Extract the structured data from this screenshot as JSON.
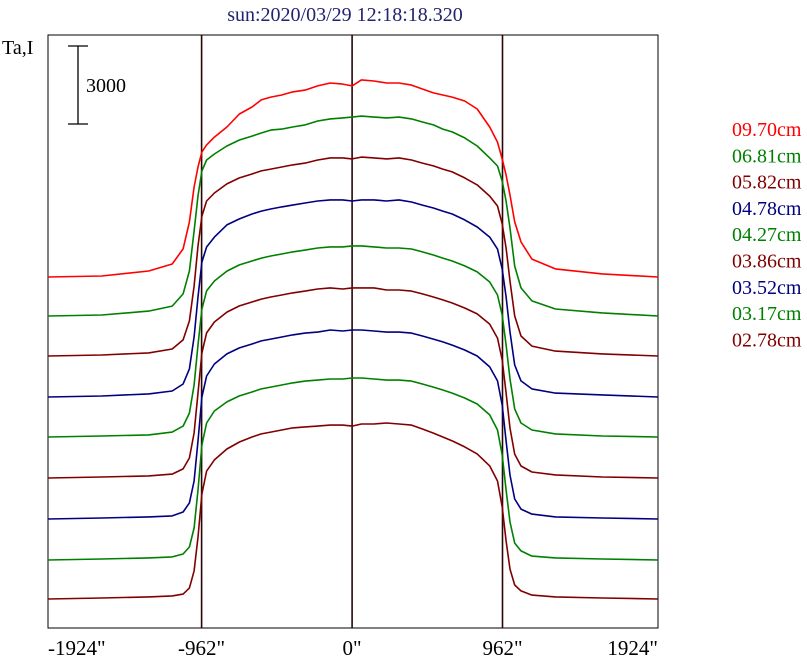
{
  "chart_data": {
    "type": "line",
    "title": "sun:2020/03/29 12:18:18.320",
    "ylabel": "Ta,I",
    "xlim": [
      -1944,
      1956
    ],
    "x_ticks": [
      {
        "value": -1924,
        "label": "-1924\""
      },
      {
        "value": -962,
        "label": "-962\""
      },
      {
        "value": 0,
        "label": "0\""
      },
      {
        "value": 962,
        "label": "962\""
      },
      {
        "value": 1924,
        "label": "1924\""
      }
    ],
    "reference_lines_x": [
      -962,
      0,
      962
    ],
    "scale_bar": {
      "value": 3000,
      "label": "3000"
    },
    "grid": false,
    "stacked": true,
    "legend_position": "right",
    "colors": {
      "title": "#22226e",
      "reference_line": "#2a0505",
      "frame": "#000000"
    },
    "x": [
      -1944,
      -1600,
      -1300,
      -1150,
      -1080,
      -1040,
      -1010,
      -985,
      -960,
      -930,
      -880,
      -800,
      -720,
      -640,
      -580,
      -520,
      -450,
      -380,
      -300,
      -220,
      -140,
      -60,
      0,
      60,
      140,
      220,
      300,
      380,
      450,
      520,
      580,
      640,
      720,
      800,
      880,
      930,
      960,
      985,
      1010,
      1040,
      1080,
      1150,
      1300,
      1600,
      1956
    ],
    "series": [
      {
        "name": "09.70cm",
        "color": "#ff0000",
        "values": [
          0,
          40,
          230,
          500,
          1080,
          2120,
          3460,
          4230,
          4810,
          5080,
          5380,
          5770,
          6270,
          6540,
          6810,
          6920,
          7000,
          7120,
          7190,
          7350,
          7460,
          7420,
          7350,
          7580,
          7540,
          7460,
          7460,
          7380,
          7230,
          7080,
          7000,
          6920,
          6770,
          6460,
          5770,
          5190,
          4540,
          3920,
          3150,
          2120,
          1350,
          690,
          310,
          120,
          0
        ]
      },
      {
        "name": "06.81cm",
        "color": "#008000",
        "values": [
          0,
          40,
          190,
          380,
          850,
          1730,
          3270,
          4620,
          5580,
          6000,
          6230,
          6540,
          6770,
          6920,
          7040,
          7150,
          7190,
          7270,
          7350,
          7500,
          7580,
          7620,
          7650,
          7690,
          7650,
          7620,
          7650,
          7580,
          7460,
          7350,
          7190,
          7080,
          6850,
          6540,
          6080,
          5770,
          5190,
          4420,
          3380,
          1920,
          1080,
          580,
          270,
          120,
          0
        ]
      },
      {
        "name": "05.82cm",
        "color": "#800000",
        "values": [
          0,
          40,
          120,
          270,
          620,
          1350,
          2690,
          4230,
          5380,
          5960,
          6270,
          6620,
          6850,
          7000,
          7120,
          7190,
          7270,
          7350,
          7420,
          7540,
          7620,
          7620,
          7580,
          7650,
          7620,
          7580,
          7620,
          7540,
          7420,
          7310,
          7190,
          7080,
          6850,
          6580,
          6150,
          5770,
          5080,
          4150,
          2880,
          1540,
          770,
          380,
          190,
          80,
          0
        ]
      },
      {
        "name": "04.78cm",
        "color": "#000080",
        "values": [
          0,
          40,
          120,
          230,
          500,
          1080,
          2310,
          3850,
          5190,
          5770,
          6150,
          6620,
          6850,
          7040,
          7150,
          7230,
          7310,
          7380,
          7460,
          7540,
          7580,
          7580,
          7540,
          7580,
          7580,
          7540,
          7580,
          7500,
          7380,
          7270,
          7150,
          7040,
          6810,
          6540,
          6150,
          5690,
          4920,
          3850,
          2500,
          1230,
          620,
          310,
          150,
          80,
          0
        ]
      },
      {
        "name": "04.27cm",
        "color": "#008000",
        "values": [
          0,
          40,
          80,
          190,
          420,
          920,
          2000,
          3540,
          4920,
          5620,
          6000,
          6380,
          6620,
          6770,
          6880,
          6960,
          7040,
          7120,
          7190,
          7270,
          7310,
          7310,
          7350,
          7350,
          7310,
          7270,
          7270,
          7230,
          7120,
          7000,
          6880,
          6770,
          6580,
          6350,
          5960,
          5460,
          4690,
          3540,
          2230,
          1080,
          540,
          270,
          120,
          40,
          0
        ]
      },
      {
        "name": "03.86cm",
        "color": "#800000",
        "values": [
          0,
          40,
          80,
          150,
          350,
          770,
          1730,
          3270,
          4810,
          5580,
          6000,
          6380,
          6620,
          6770,
          6880,
          6960,
          7040,
          7120,
          7190,
          7270,
          7310,
          7270,
          7310,
          7310,
          7310,
          7230,
          7230,
          7190,
          7080,
          6960,
          6850,
          6730,
          6540,
          6310,
          5920,
          5380,
          4540,
          3270,
          1920,
          920,
          460,
          230,
          120,
          40,
          0
        ]
      },
      {
        "name": "03.52cm",
        "color": "#000080",
        "values": [
          0,
          40,
          80,
          120,
          270,
          620,
          1460,
          3000,
          4690,
          5500,
          5960,
          6350,
          6580,
          6730,
          6850,
          6920,
          7000,
          7080,
          7150,
          7190,
          7270,
          7230,
          7270,
          7270,
          7230,
          7190,
          7190,
          7150,
          7040,
          6920,
          6810,
          6690,
          6500,
          6270,
          5850,
          5310,
          4380,
          3000,
          1690,
          770,
          380,
          190,
          80,
          40,
          0
        ]
      },
      {
        "name": "03.17cm",
        "color": "#008000",
        "values": [
          0,
          40,
          80,
          120,
          230,
          500,
          1230,
          2690,
          4420,
          5270,
          5730,
          6080,
          6310,
          6460,
          6580,
          6650,
          6730,
          6810,
          6880,
          6920,
          6960,
          6960,
          7000,
          7000,
          6960,
          6920,
          6920,
          6880,
          6770,
          6650,
          6540,
          6420,
          6230,
          6000,
          5580,
          5000,
          4040,
          2690,
          1460,
          650,
          350,
          150,
          80,
          40,
          0
        ]
      },
      {
        "name": "02.78cm",
        "color": "#800000",
        "values": [
          0,
          40,
          80,
          120,
          190,
          420,
          1080,
          2380,
          4040,
          4920,
          5350,
          5770,
          6040,
          6230,
          6350,
          6420,
          6500,
          6580,
          6620,
          6650,
          6690,
          6690,
          6650,
          6730,
          6730,
          6770,
          6730,
          6690,
          6540,
          6380,
          6230,
          6080,
          5850,
          5580,
          5120,
          4540,
          3540,
          2230,
          1150,
          540,
          310,
          150,
          80,
          40,
          0
        ]
      }
    ]
  }
}
